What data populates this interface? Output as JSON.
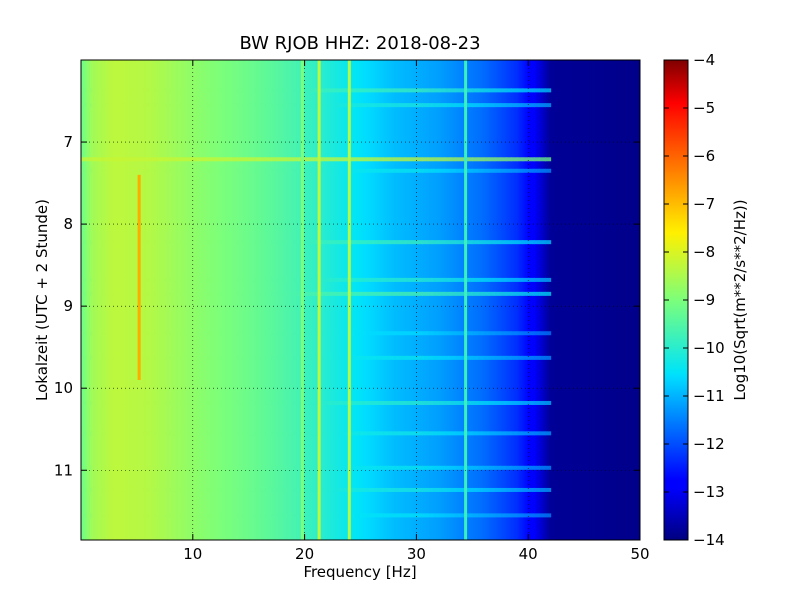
{
  "chart_data": {
    "type": "heatmap",
    "title": "BW RJOB HHZ: 2018-08-23",
    "xlabel": "Frequency [Hz]",
    "ylabel": "Lokalzeit (UTC + 2 Stunde)",
    "colorbar_label": "Log10(Sqrt(m**2/s**2/Hz))",
    "colormap": "jet",
    "xlim": [
      0,
      50
    ],
    "ylim": [
      6.0,
      11.85
    ],
    "y_inverted": true,
    "clim": [
      -14,
      -4
    ],
    "x_ticks": [
      10,
      20,
      30,
      40,
      50
    ],
    "y_ticks": [
      7,
      8,
      9,
      10,
      11
    ],
    "colorbar_ticks": [
      -4,
      -5,
      -6,
      -7,
      -8,
      -9,
      -10,
      -11,
      -12,
      -13,
      -14
    ],
    "grid": "dotted",
    "background_profile": {
      "freq_hz": [
        0,
        1,
        3,
        6,
        10,
        15,
        19,
        24,
        28,
        32,
        36,
        39,
        40.5,
        42,
        50
      ],
      "value": [
        -9.2,
        -8.6,
        -8.3,
        -8.4,
        -8.8,
        -9.2,
        -9.6,
        -10.4,
        -10.9,
        -11.2,
        -11.7,
        -12.3,
        -12.9,
        -13.8,
        -13.9
      ]
    },
    "vertical_features": [
      {
        "freq_hz": 5.2,
        "time_start": 7.4,
        "time_end": 9.9,
        "value": -6.8
      },
      {
        "freq_hz": 19.8,
        "time_start": 6.0,
        "time_end": 11.85,
        "value": -9.0
      },
      {
        "freq_hz": 21.3,
        "time_start": 6.0,
        "time_end": 11.85,
        "value": -8.3
      },
      {
        "freq_hz": 24.0,
        "time_start": 6.0,
        "time_end": 11.85,
        "value": -8.4
      },
      {
        "freq_hz": 34.4,
        "time_start": 6.0,
        "time_end": 11.85,
        "value": -9.8
      }
    ],
    "horizontal_bands": [
      {
        "time": 6.37,
        "value": -9.8
      },
      {
        "time": 6.55,
        "value": -10.2
      },
      {
        "time": 7.21,
        "value": -8.2
      },
      {
        "time": 7.35,
        "value": -10.4
      },
      {
        "time": 8.22,
        "value": -9.8
      },
      {
        "time": 8.68,
        "value": -10.0
      },
      {
        "time": 8.85,
        "value": -9.6
      },
      {
        "time": 9.33,
        "value": -10.6
      },
      {
        "time": 9.63,
        "value": -10.4
      },
      {
        "time": 10.18,
        "value": -10.0
      },
      {
        "time": 10.55,
        "value": -10.3
      },
      {
        "time": 10.97,
        "value": -10.4
      },
      {
        "time": 11.24,
        "value": -10.2
      },
      {
        "time": 11.55,
        "value": -10.5
      }
    ]
  }
}
